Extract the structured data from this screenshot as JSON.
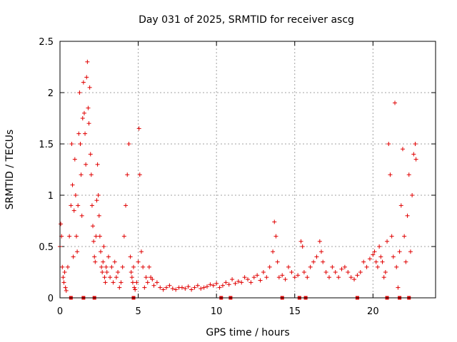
{
  "chart_data": {
    "type": "scatter",
    "title": "Day 031 of 2025, SRMTID for receiver ascg",
    "xlabel": "GPS time / hours",
    "ylabel": "SRMTID / TECUs",
    "xlim": [
      0,
      24
    ],
    "ylim": [
      0,
      2.5
    ],
    "xticks": [
      0,
      5,
      10,
      15,
      20
    ],
    "xtick_labels": [
      "0",
      "5",
      "10",
      "15",
      "20"
    ],
    "yticks": [
      0,
      0.5,
      1,
      1.5,
      2,
      2.5
    ],
    "ytick_labels": [
      "0",
      "0.5",
      "1",
      "1.5",
      "2",
      "2.5"
    ],
    "grid": true,
    "marker": "plus",
    "color": "#e00000",
    "series": [
      {
        "name": "SRMTID",
        "x": [
          0.0,
          0.05,
          0.1,
          0.15,
          0.2,
          0.25,
          0.3,
          0.35,
          0.4,
          0.5,
          0.6,
          0.7,
          0.75,
          0.8,
          0.85,
          0.9,
          0.95,
          1.0,
          1.05,
          1.1,
          1.15,
          1.2,
          1.25,
          1.3,
          1.35,
          1.4,
          1.45,
          1.5,
          1.55,
          1.6,
          1.65,
          1.7,
          1.75,
          1.8,
          1.85,
          1.9,
          1.95,
          2.0,
          2.05,
          2.1,
          2.15,
          2.2,
          2.25,
          2.3,
          2.35,
          2.4,
          2.45,
          2.5,
          2.55,
          2.6,
          2.65,
          2.7,
          2.75,
          2.8,
          2.85,
          2.9,
          2.95,
          3.0,
          3.1,
          3.2,
          3.3,
          3.4,
          3.5,
          3.6,
          3.7,
          3.8,
          3.9,
          4.0,
          4.1,
          4.2,
          4.3,
          4.4,
          4.5,
          4.55,
          4.6,
          4.65,
          4.7,
          4.75,
          4.8,
          4.9,
          5.0,
          5.05,
          5.1,
          5.2,
          5.3,
          5.4,
          5.5,
          5.6,
          5.7,
          5.8,
          5.9,
          6.0,
          6.2,
          6.4,
          6.6,
          6.8,
          7.0,
          7.2,
          7.4,
          7.6,
          7.8,
          8.0,
          8.2,
          8.4,
          8.6,
          8.8,
          9.0,
          9.2,
          9.4,
          9.6,
          9.8,
          10.0,
          10.2,
          10.4,
          10.6,
          10.8,
          11.0,
          11.2,
          11.4,
          11.6,
          11.8,
          12.0,
          12.2,
          12.4,
          12.6,
          12.8,
          13.0,
          13.2,
          13.4,
          13.6,
          13.7,
          13.8,
          13.9,
          14.0,
          14.2,
          14.4,
          14.6,
          14.8,
          15.0,
          15.2,
          15.4,
          15.5,
          15.6,
          15.8,
          16.0,
          16.2,
          16.4,
          16.6,
          16.7,
          16.8,
          17.0,
          17.2,
          17.4,
          17.6,
          17.8,
          18.0,
          18.2,
          18.4,
          18.6,
          18.8,
          19.0,
          19.2,
          19.4,
          19.6,
          19.8,
          20.0,
          20.1,
          20.2,
          20.3,
          20.4,
          20.5,
          20.6,
          20.7,
          20.8,
          20.9,
          21.0,
          21.1,
          21.2,
          21.3,
          21.4,
          21.5,
          21.6,
          21.7,
          21.8,
          21.9,
          22.0,
          22.1,
          22.2,
          22.3,
          22.4,
          22.5,
          22.6,
          22.7,
          22.75
        ],
        "y": [
          0.5,
          0.72,
          0.6,
          0.3,
          0.2,
          0.15,
          0.25,
          0.1,
          0.07,
          0.3,
          0.6,
          0.9,
          1.5,
          1.1,
          0.4,
          0.85,
          1.35,
          1.0,
          0.6,
          0.45,
          0.9,
          1.6,
          2.0,
          1.5,
          1.2,
          0.8,
          1.75,
          2.1,
          1.8,
          1.6,
          1.3,
          2.15,
          2.3,
          1.85,
          1.7,
          2.05,
          1.4,
          1.2,
          0.9,
          0.7,
          0.55,
          0.4,
          0.35,
          0.6,
          0.95,
          1.3,
          1.0,
          0.8,
          0.6,
          0.45,
          0.3,
          0.25,
          0.35,
          0.5,
          0.2,
          0.15,
          0.3,
          0.25,
          0.4,
          0.2,
          0.3,
          0.15,
          0.35,
          0.2,
          0.25,
          0.1,
          0.15,
          0.3,
          0.6,
          0.9,
          1.2,
          1.5,
          0.4,
          0.25,
          0.2,
          0.15,
          0.3,
          0.1,
          0.08,
          0.15,
          0.35,
          1.65,
          1.2,
          0.45,
          0.3,
          0.1,
          0.2,
          0.15,
          0.3,
          0.2,
          0.18,
          0.12,
          0.15,
          0.1,
          0.08,
          0.1,
          0.12,
          0.09,
          0.08,
          0.1,
          0.1,
          0.09,
          0.11,
          0.08,
          0.1,
          0.12,
          0.09,
          0.1,
          0.11,
          0.13,
          0.12,
          0.14,
          0.1,
          0.12,
          0.15,
          0.13,
          0.18,
          0.14,
          0.16,
          0.15,
          0.2,
          0.18,
          0.15,
          0.2,
          0.22,
          0.17,
          0.25,
          0.2,
          0.3,
          0.45,
          0.74,
          0.6,
          0.35,
          0.2,
          0.22,
          0.18,
          0.3,
          0.25,
          0.2,
          0.22,
          0.55,
          0.5,
          0.25,
          0.2,
          0.3,
          0.35,
          0.4,
          0.55,
          0.45,
          0.35,
          0.25,
          0.2,
          0.3,
          0.25,
          0.2,
          0.28,
          0.3,
          0.25,
          0.2,
          0.18,
          0.22,
          0.25,
          0.35,
          0.3,
          0.38,
          0.42,
          0.45,
          0.35,
          0.3,
          0.5,
          0.4,
          0.35,
          0.2,
          0.25,
          0.55,
          1.5,
          1.2,
          0.6,
          0.4,
          1.9,
          0.3,
          0.1,
          0.45,
          0.9,
          1.45,
          0.6,
          0.35,
          0.8,
          1.2,
          0.45,
          1.0,
          1.4,
          1.5,
          1.35
        ]
      }
    ],
    "gap_markers_x": [
      0.7,
      1.5,
      2.2,
      4.7,
      10.3,
      10.9,
      14.2,
      15.3,
      15.7,
      19.0,
      20.9,
      21.7,
      22.3
    ]
  }
}
